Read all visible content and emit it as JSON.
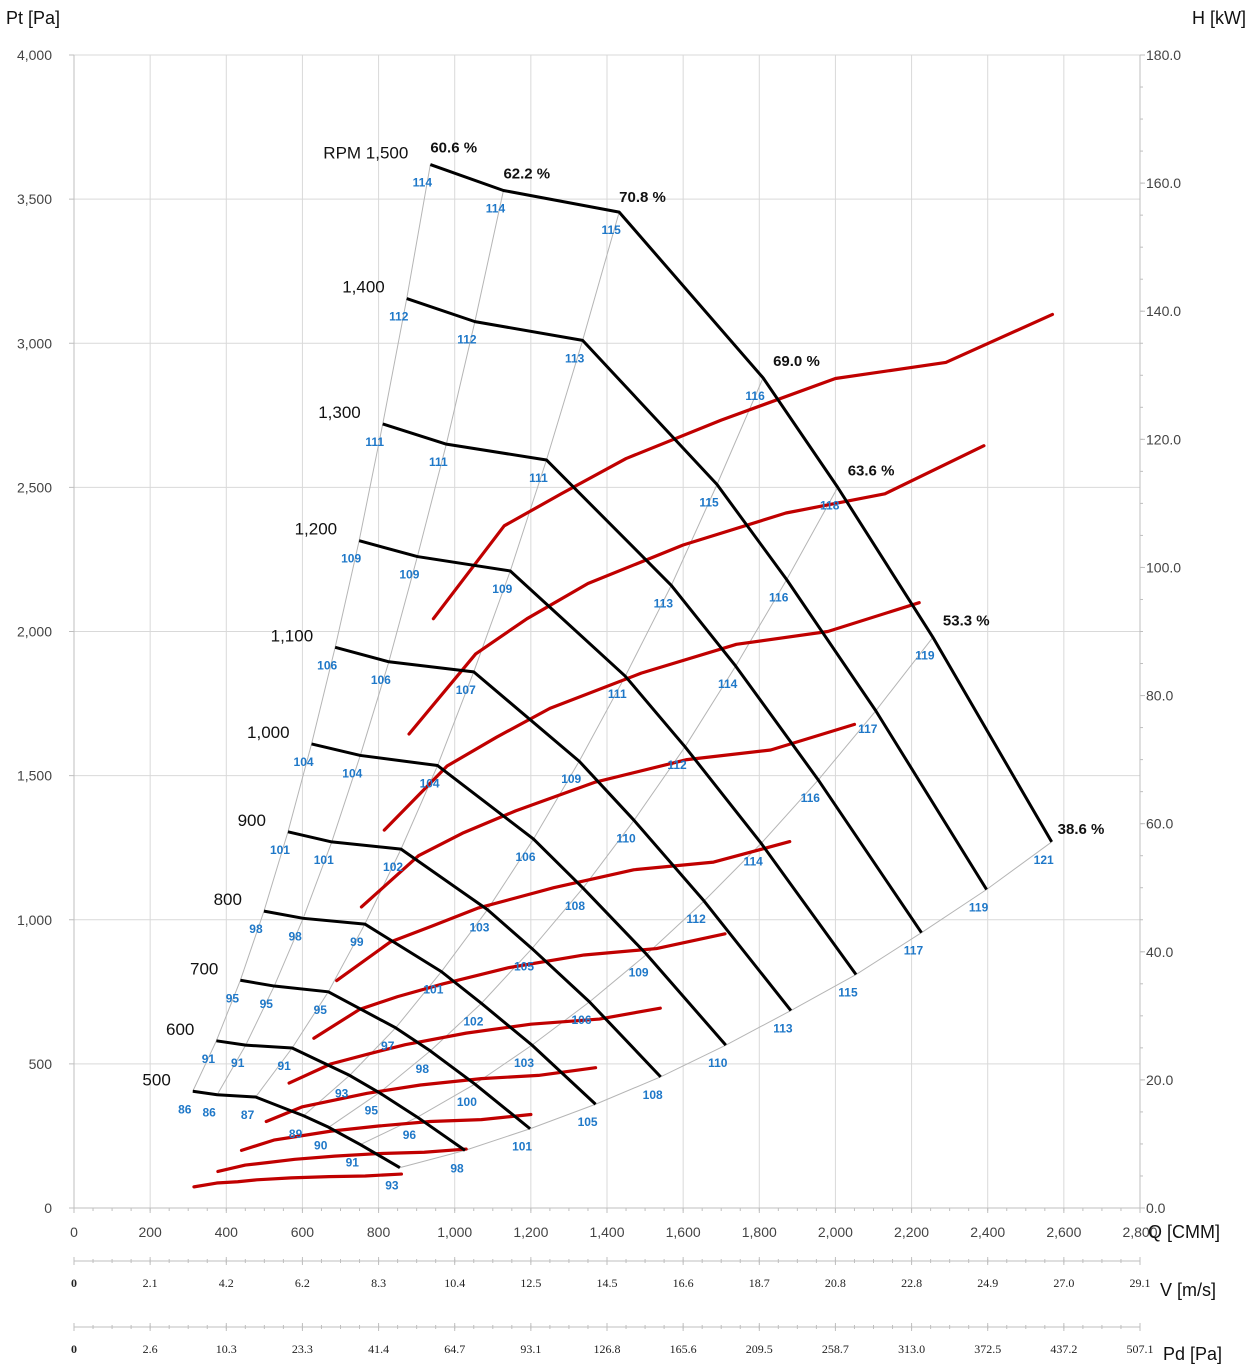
{
  "chart_data": {
    "type": "line",
    "title": "",
    "xlabel": "Q [CMM]",
    "ylabel_left": "Pt [Pa]",
    "ylabel_right": "H [kW]",
    "xlim": [
      0,
      2800
    ],
    "ylim_left": [
      0,
      4000
    ],
    "ylim_right": [
      0,
      180
    ],
    "grid": true,
    "x_ticks": [
      "0",
      "200",
      "400",
      "600",
      "800",
      "1,000",
      "1,200",
      "1,400",
      "1,600",
      "1,800",
      "2,000",
      "2,200",
      "2,400",
      "2,600",
      "2,800"
    ],
    "y_left_ticks": [
      "0",
      "500",
      "1,000",
      "1,500",
      "2,000",
      "2,500",
      "3,000",
      "3,500",
      "4,000"
    ],
    "y_right_ticks": [
      "0.0",
      "20.0",
      "40.0",
      "60.0",
      "80.0",
      "100.0",
      "120.0",
      "140.0",
      "160.0",
      "180.0"
    ],
    "v_axis": {
      "label": "V [m/s]",
      "ticks": [
        "0",
        "2.1",
        "4.2",
        "6.2",
        "8.3",
        "10.4",
        "12.5",
        "14.5",
        "16.6",
        "18.7",
        "20.8",
        "22.8",
        "24.9",
        "27.0",
        "29.1"
      ]
    },
    "pd_axis": {
      "label": "Pd [Pa]",
      "ticks": [
        "0",
        "2.6",
        "10.3",
        "23.3",
        "41.4",
        "64.7",
        "93.1",
        "126.8",
        "165.6",
        "209.5",
        "258.7",
        "313.0",
        "372.5",
        "437.2",
        "507.1"
      ]
    },
    "rpm_labels": [
      "RPM 1,500",
      "1,400",
      "1,300",
      "1,200",
      "1,100",
      "1,000",
      "900",
      "800",
      "700",
      "600",
      "500"
    ],
    "efficiency_labels": [
      "60.6 %",
      "62.2 %",
      "70.8 %",
      "69.0 %",
      "63.6 %",
      "53.3 %",
      "38.6 %"
    ],
    "pressure_curves": [
      {
        "rpm": 1500,
        "q": [
          936,
          1128,
          1432,
          1810,
          2006,
          2256,
          2568
        ],
        "pt": [
          3620,
          3530,
          3455,
          2880,
          2500,
          1980,
          1270
        ]
      },
      {
        "rpm": 1400,
        "q": [
          874,
          1053,
          1336,
          1689,
          1872,
          2106,
          2397
        ],
        "pt": [
          3155,
          3075,
          3010,
          2510,
          2180,
          1725,
          1105
        ]
      },
      {
        "rpm": 1300,
        "q": [
          811,
          978,
          1241,
          1569,
          1738,
          1955,
          2226
        ],
        "pt": [
          2720,
          2650,
          2595,
          2160,
          1880,
          1485,
          955
        ]
      },
      {
        "rpm": 1200,
        "q": [
          749,
          902,
          1146,
          1448,
          1605,
          1805,
          2054
        ],
        "pt": [
          2315,
          2260,
          2210,
          1845,
          1600,
          1265,
          810
        ]
      },
      {
        "rpm": 1100,
        "q": [
          686,
          827,
          1050,
          1327,
          1471,
          1655,
          1883
        ],
        "pt": [
          1945,
          1895,
          1860,
          1550,
          1345,
          1065,
          685
        ]
      },
      {
        "rpm": 1000,
        "q": [
          624,
          752,
          955,
          1207,
          1337,
          1504,
          1712
        ],
        "pt": [
          1610,
          1570,
          1535,
          1280,
          1110,
          880,
          565
        ]
      },
      {
        "rpm": 900,
        "q": [
          562,
          677,
          859,
          1086,
          1203,
          1354,
          1541
        ],
        "pt": [
          1305,
          1270,
          1245,
          1035,
          900,
          715,
          455
        ]
      },
      {
        "rpm": 800,
        "q": [
          499,
          602,
          764,
          965,
          1070,
          1203,
          1370
        ],
        "pt": [
          1030,
          1005,
          985,
          820,
          710,
          565,
          360
        ]
      },
      {
        "rpm": 700,
        "q": [
          437,
          526,
          668,
          845,
          936,
          1053,
          1198
        ],
        "pt": [
          790,
          770,
          750,
          625,
          545,
          430,
          275
        ]
      },
      {
        "rpm": 600,
        "q": [
          374,
          451,
          573,
          724,
          802,
          902,
          1027
        ],
        "pt": [
          580,
          565,
          555,
          460,
          400,
          315,
          200
        ]
      },
      {
        "rpm": 500,
        "q": [
          312,
          376,
          477,
          603,
          669,
          752,
          856
        ],
        "pt": [
          405,
          393,
          385,
          320,
          280,
          220,
          140
        ]
      }
    ],
    "noise_labels_db": [
      [
        114,
        114,
        115,
        116,
        118,
        119,
        121
      ],
      [
        112,
        112,
        113,
        115,
        116,
        117,
        119
      ],
      [
        111,
        111,
        111,
        113,
        114,
        116,
        117
      ],
      [
        109,
        109,
        109,
        111,
        112,
        114,
        115
      ],
      [
        106,
        106,
        107,
        109,
        110,
        112,
        113
      ],
      [
        104,
        104,
        104,
        106,
        108,
        109,
        110
      ],
      [
        101,
        101,
        102,
        103,
        105,
        106,
        108
      ],
      [
        98,
        98,
        99,
        101,
        102,
        103,
        105
      ],
      [
        95,
        95,
        95,
        97,
        98,
        100,
        101
      ],
      [
        91,
        91,
        91,
        93,
        95,
        96,
        98
      ],
      [
        86,
        86,
        87,
        89,
        90,
        91,
        93
      ]
    ],
    "power_curves": [
      {
        "rpm": 1500,
        "q": [
          944,
          1130,
          1280,
          1450,
          1700,
          2000,
          2290,
          2570
        ],
        "h_kw": [
          92,
          106.5,
          111.5,
          117,
          123,
          129.5,
          132,
          139.5
        ]
      },
      {
        "rpm": 1400,
        "q": [
          880,
          1055,
          1190,
          1350,
          1600,
          1870,
          2130,
          2390
        ],
        "h_kw": [
          74,
          86.5,
          92,
          97.5,
          103.5,
          108.5,
          111.5,
          119
        ]
      },
      {
        "rpm": 1300,
        "q": [
          815,
          980,
          1110,
          1250,
          1490,
          1740,
          1980,
          2220
        ],
        "h_kw": [
          59,
          69,
          73.5,
          78,
          83.5,
          88,
          90,
          94.5
        ]
      },
      {
        "rpm": 1200,
        "q": [
          755,
          905,
          1020,
          1160,
          1370,
          1610,
          1830,
          2050
        ],
        "h_kw": [
          47,
          55,
          58.5,
          62,
          66.5,
          70,
          71.5,
          75.5
        ]
      },
      {
        "rpm": 1100,
        "q": [
          690,
          830,
          940,
          1060,
          1260,
          1470,
          1680,
          1880
        ],
        "h_kw": [
          35.5,
          41.5,
          44,
          46.8,
          50,
          52.8,
          54,
          57.2
        ]
      },
      {
        "rpm": 1000,
        "q": [
          630,
          750,
          850,
          970,
          1140,
          1340,
          1530,
          1710
        ],
        "h_kw": [
          26.5,
          31,
          33,
          35,
          37.5,
          39.5,
          40.5,
          42.8
        ]
      },
      {
        "rpm": 900,
        "q": [
          565,
          675,
          770,
          870,
          1030,
          1200,
          1380,
          1540
        ],
        "h_kw": [
          19.5,
          22.5,
          24,
          25.5,
          27.3,
          28.7,
          29.5,
          31.2
        ]
      },
      {
        "rpm": 800,
        "q": [
          505,
          600,
          680,
          770,
          910,
          1070,
          1220,
          1370
        ],
        "h_kw": [
          13.5,
          15.8,
          16.8,
          17.9,
          19.2,
          20.2,
          20.7,
          21.9
        ]
      },
      {
        "rpm": 700,
        "q": [
          440,
          525,
          600,
          675,
          800,
          935,
          1070,
          1200
        ],
        "h_kw": [
          9,
          10.6,
          11.3,
          12,
          12.8,
          13.5,
          13.8,
          14.6
        ]
      },
      {
        "rpm": 600,
        "q": [
          378,
          450,
          510,
          580,
          685,
          800,
          920,
          1030
        ],
        "h_kw": [
          5.7,
          6.7,
          7.1,
          7.6,
          8.1,
          8.5,
          8.7,
          9.2
        ]
      },
      {
        "rpm": 500,
        "q": [
          315,
          375,
          430,
          480,
          570,
          670,
          765,
          860
        ],
        "h_kw": [
          3.3,
          3.9,
          4.1,
          4.4,
          4.7,
          4.9,
          5.0,
          5.3
        ]
      }
    ],
    "colors": {
      "pressure_line": "#000000",
      "power_line": "#c00000",
      "noise_label": "#1f78c8",
      "system_line": "#b5b5b5",
      "grid": "#d9d9d9"
    }
  }
}
